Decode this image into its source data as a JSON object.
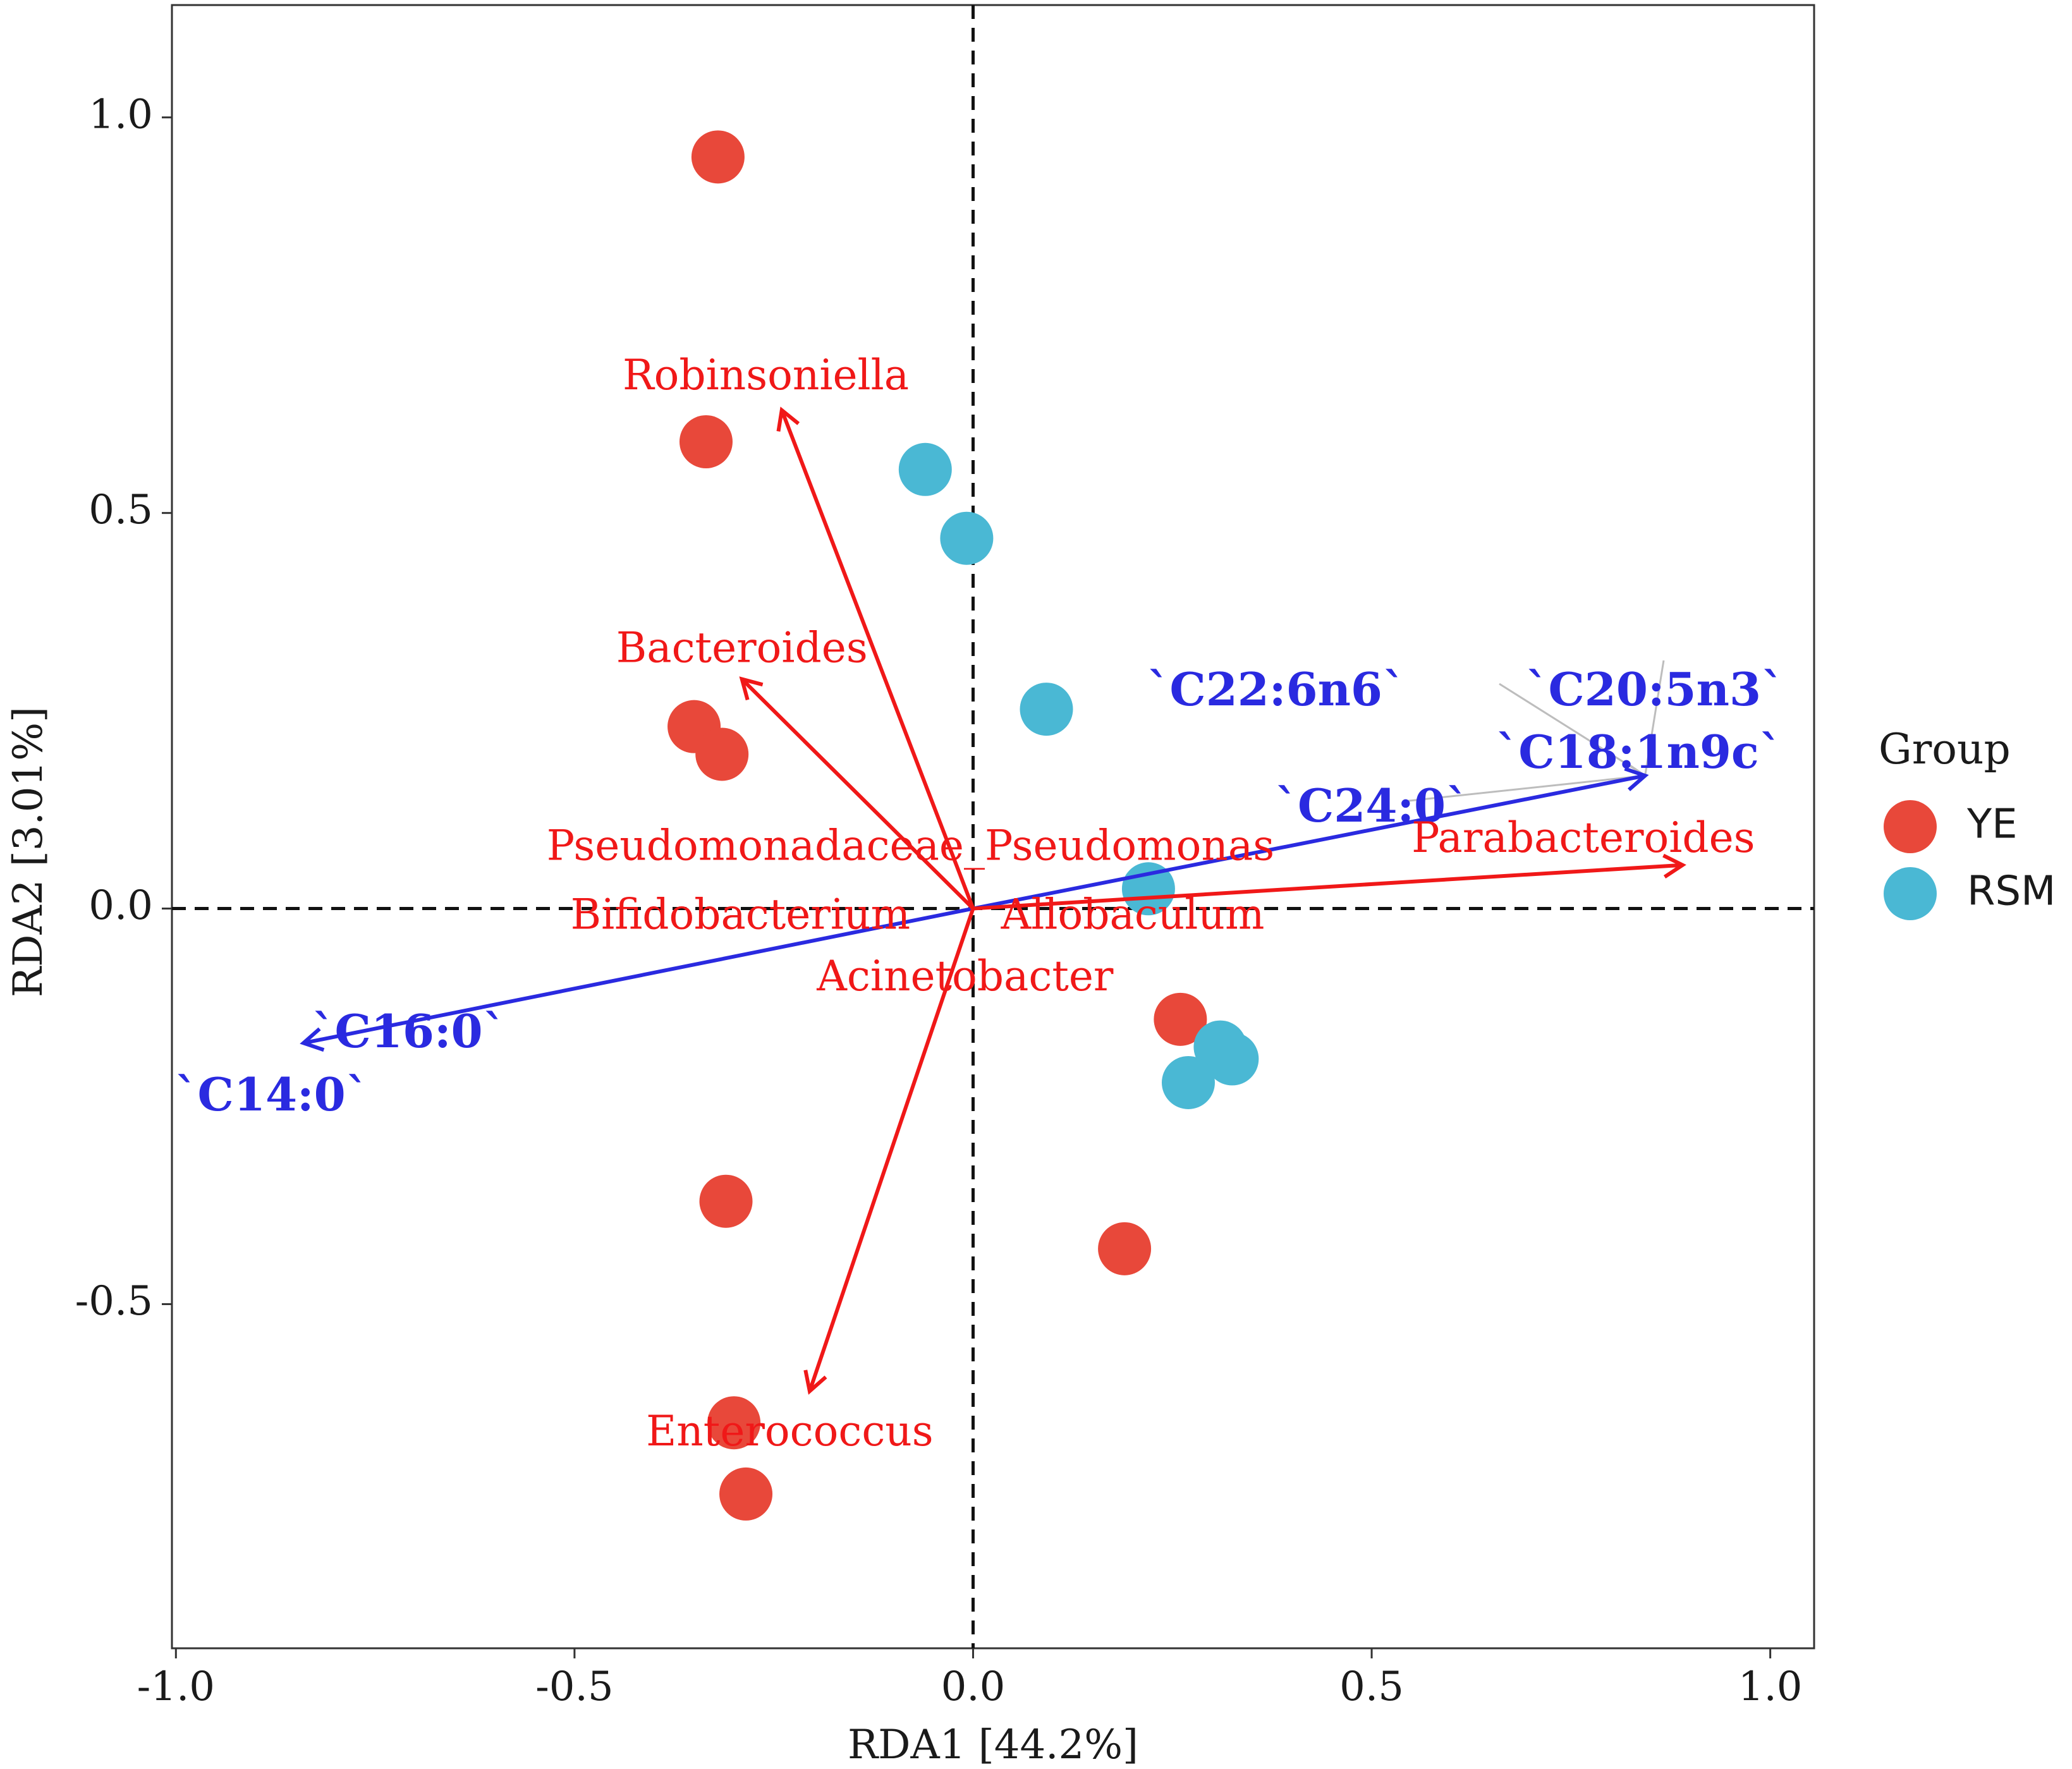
{
  "chart_data": {
    "type": "scatter",
    "subtype": "RDA biplot",
    "xlabel": "RDA1 [44.2%]",
    "ylabel": "RDA2 [3.01%]",
    "xlim": [
      -1.005,
      1.055
    ],
    "ylim": [
      -0.935,
      1.142
    ],
    "x_ticks": [
      {
        "value": -1.0,
        "label": "-1.0"
      },
      {
        "value": -0.5,
        "label": "-0.5"
      },
      {
        "value": 0.0,
        "label": "0.0"
      },
      {
        "value": 0.5,
        "label": "0.5"
      },
      {
        "value": 1.0,
        "label": "1.0"
      }
    ],
    "y_ticks": [
      {
        "value": 1.0,
        "label": "1.0"
      },
      {
        "value": 0.5,
        "label": "0.5"
      },
      {
        "value": 0.0,
        "label": "0.0"
      },
      {
        "value": -0.5,
        "label": "-0.5"
      }
    ],
    "reference_lines": {
      "x": 0,
      "y": 0,
      "style": "dashed"
    },
    "legend": {
      "title": "Group",
      "position": "right",
      "entries": [
        {
          "name": "YE",
          "color": "#e8483a"
        },
        {
          "name": "RSM",
          "color": "#4ab8d4"
        }
      ]
    },
    "groups": [
      {
        "name": "YE",
        "color": "#e8483a",
        "points": [
          {
            "x": -0.32,
            "y": 0.95
          },
          {
            "x": -0.335,
            "y": 0.59
          },
          {
            "x": -0.35,
            "y": 0.23
          },
          {
            "x": -0.315,
            "y": 0.195
          },
          {
            "x": 0.26,
            "y": -0.14
          },
          {
            "x": -0.31,
            "y": -0.37
          },
          {
            "x": 0.19,
            "y": -0.43
          },
          {
            "x": -0.3,
            "y": -0.65
          },
          {
            "x": -0.285,
            "y": -0.74
          }
        ]
      },
      {
        "name": "RSM",
        "color": "#4ab8d4",
        "points": [
          {
            "x": -0.06,
            "y": 0.555
          },
          {
            "x": -0.008,
            "y": 0.468
          },
          {
            "x": 0.092,
            "y": 0.252
          },
          {
            "x": 0.22,
            "y": 0.025
          },
          {
            "x": 0.31,
            "y": -0.175
          },
          {
            "x": 0.325,
            "y": -0.19
          },
          {
            "x": 0.27,
            "y": -0.22
          }
        ]
      }
    ],
    "species_vectors": {
      "color": "#f01818",
      "items": [
        {
          "label": "Robinsoniella",
          "x": -0.24,
          "y": 0.63,
          "label_x": -0.26,
          "label_y": 0.67,
          "anchor": "middle"
        },
        {
          "label": "Bacteroides",
          "x": -0.29,
          "y": 0.29,
          "label_x": -0.29,
          "label_y": 0.325,
          "anchor": "middle"
        },
        {
          "label": "Pseudomonadaceae_Pseudomonas",
          "x": 0.0,
          "y": 0.0,
          "label_x": -0.535,
          "label_y": 0.075,
          "anchor": "start"
        },
        {
          "label": "Parabacteroides",
          "x": 0.89,
          "y": 0.055,
          "label_x": 0.55,
          "label_y": 0.085,
          "anchor": "start"
        },
        {
          "label": "Bifidobacterium",
          "x": 0.0,
          "y": 0.0,
          "label_x": -0.505,
          "label_y": -0.012,
          "anchor": "start"
        },
        {
          "label": "Allobaculum",
          "x": 0.0,
          "y": 0.0,
          "label_x": 0.035,
          "label_y": -0.012,
          "anchor": "start"
        },
        {
          "label": "Acinetobacter",
          "x": 0.0,
          "y": 0.0,
          "label_x": -0.01,
          "label_y": -0.09,
          "anchor": "middle"
        },
        {
          "label": "Enterococcus",
          "x": -0.205,
          "y": -0.61,
          "label_x": -0.23,
          "label_y": -0.665,
          "anchor": "middle"
        }
      ]
    },
    "environment_vectors": {
      "color": "#2a2ae0",
      "items": [
        {
          "label": "`C22:6n6`",
          "x": 0.843,
          "y": 0.168,
          "label_x": 0.38,
          "label_y": 0.272,
          "anchor": "middle"
        },
        {
          "label": "`C20:5n3`",
          "x": 0.843,
          "y": 0.168,
          "label_x": 0.855,
          "label_y": 0.272,
          "anchor": "middle"
        },
        {
          "label": "`C18:1n9c`",
          "x": 0.843,
          "y": 0.168,
          "label_x": 0.835,
          "label_y": 0.193,
          "anchor": "middle"
        },
        {
          "label": "`C24:0`",
          "x": 0.843,
          "y": 0.168,
          "label_x": 0.5,
          "label_y": 0.125,
          "anchor": "middle"
        },
        {
          "label": "`C16:0`",
          "x": -0.84,
          "y": -0.17,
          "label_x": -0.708,
          "label_y": -0.16,
          "anchor": "middle"
        },
        {
          "label": "`C14:0`",
          "x": -0.84,
          "y": -0.17,
          "label_x": -0.88,
          "label_y": -0.24,
          "anchor": "middle"
        }
      ]
    }
  }
}
